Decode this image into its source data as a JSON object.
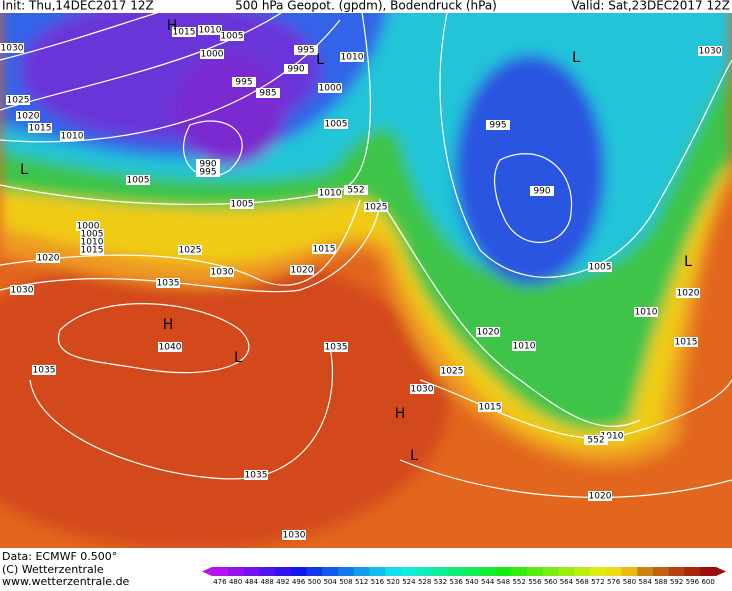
{
  "header": {
    "init": "Init: Thu,14DEC2017 12Z",
    "title": "500 hPa Geopot. (gpdm), Bodendruck (hPa)",
    "valid": "Valid: Sat,23DEC2017 12Z"
  },
  "footer": {
    "data": "Data: ECMWF  0.500°",
    "copyright": "(C) Wetterzentrale",
    "url": "www.wetterzentrale.de"
  },
  "isobar_labels": [
    1030,
    1025,
    1020,
    1015,
    1010,
    1005,
    1000,
    1005,
    1010,
    1015,
    1020,
    1030,
    1025,
    1030,
    1035,
    1040,
    1035,
    1035,
    1035,
    1030,
    1015,
    1010,
    1005,
    1000,
    995,
    985,
    990,
    995,
    1010,
    1000,
    1005,
    990,
    995,
    1005,
    1010,
    1025,
    1015,
    1020,
    995,
    990,
    1005,
    1030,
    1020,
    1010,
    1015,
    1020,
    1010,
    1025,
    1030,
    1015,
    1010,
    1020,
    552,
    552
  ],
  "pressure_centers": [
    "H",
    "L",
    "H",
    "L",
    "L",
    "L",
    "L",
    "L",
    "H"
  ],
  "colorbar": {
    "labels": [
      476,
      480,
      484,
      488,
      492,
      496,
      500,
      504,
      508,
      512,
      516,
      520,
      524,
      528,
      532,
      536,
      540,
      544,
      548,
      552,
      556,
      560,
      564,
      568,
      572,
      576,
      580,
      584,
      588,
      592,
      596,
      600
    ]
  }
}
